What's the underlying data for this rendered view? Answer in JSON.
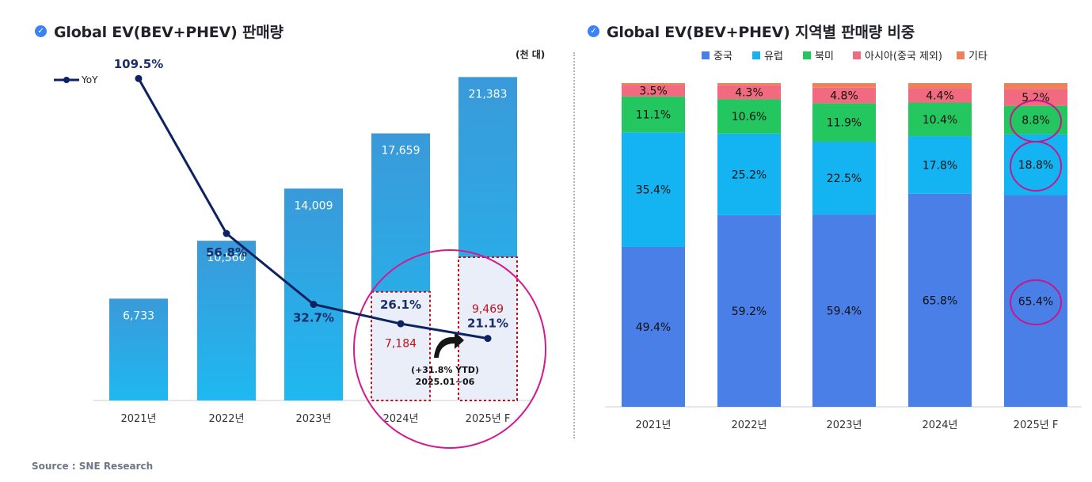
{
  "source": "Source : SNE Research",
  "charts": {
    "left": {
      "title": "Global EV(BEV+PHEV) 판매량",
      "unit": "(천 대)"
    },
    "right": {
      "title": "Global EV(BEV+PHEV) 지역별 판매량 비중"
    }
  },
  "colors": {
    "bar_top": "#3a9ad9",
    "bar_bottom": "#1fb8f0",
    "yoy_line": "#0d2260",
    "highlight": "#d4188f",
    "dashed_box": "#c0101a",
    "ytd_fill": "#e9eef9",
    "china": "#4a7fe8",
    "europe": "#14b4f2",
    "north_america": "#23c65f",
    "asia_ex_china": "#f26a7f",
    "others": "#f0805a"
  },
  "chart_data": [
    {
      "type": "bar",
      "title": "Global EV(BEV+PHEV) 판매량",
      "unit": "(천 대)",
      "categories": [
        "2021년",
        "2022년",
        "2023년",
        "2024년",
        "2025년 F"
      ],
      "values": [
        6733,
        10560,
        14009,
        17659,
        21383
      ],
      "value_labels": [
        "6,733",
        "10,560",
        "14,009",
        "17,659",
        "21,383"
      ],
      "ylim": [
        0,
        22500
      ],
      "line_series": {
        "name": "YoY",
        "values": [
          109.5,
          56.8,
          32.7,
          26.1,
          21.1
        ],
        "labels": [
          "109.5%",
          "56.8%",
          "32.7%",
          "26.1%",
          "21.1%"
        ],
        "ylim": [
          0,
          135
        ]
      },
      "ytd": {
        "categories": [
          "2024년",
          "2025년 F"
        ],
        "values": [
          7184,
          9469
        ],
        "labels": [
          "7,184",
          "9,469"
        ],
        "annotation_line1": "(+31.8% YTD)",
        "annotation_line2": "2025.01~06"
      },
      "legend": [
        "YoY"
      ],
      "legend_position": "top-left"
    },
    {
      "type": "stacked_bar_100",
      "title": "Global EV(BEV+PHEV) 지역별 판매량 비중",
      "categories": [
        "2021년",
        "2022년",
        "2023년",
        "2024년",
        "2025년 F"
      ],
      "series": [
        {
          "name": "중국",
          "values": [
            49.4,
            59.2,
            59.4,
            65.8,
            65.4
          ],
          "labels": [
            "49.4%",
            "59.2%",
            "59.4%",
            "65.8%",
            "65.4%"
          ]
        },
        {
          "name": "유럽",
          "values": [
            35.4,
            25.2,
            22.5,
            17.8,
            18.8
          ],
          "labels": [
            "35.4%",
            "25.2%",
            "22.5%",
            "17.8%",
            "18.8%"
          ]
        },
        {
          "name": "북미",
          "values": [
            11.1,
            10.6,
            11.9,
            10.4,
            8.8
          ],
          "labels": [
            "11.1%",
            "10.6%",
            "11.9%",
            "10.4%",
            "8.8%"
          ]
        },
        {
          "name": "아시아(중국 제외)",
          "values": [
            3.5,
            4.3,
            4.8,
            4.4,
            5.2
          ],
          "labels": [
            "3.5%",
            "4.3%",
            "4.8%",
            "4.4%",
            "5.2%"
          ]
        },
        {
          "name": "기타",
          "values": [
            0.6,
            0.7,
            1.4,
            1.6,
            1.8
          ],
          "labels": [
            "",
            "",
            "",
            "",
            ""
          ]
        }
      ],
      "ylim": [
        0,
        100
      ],
      "legend_position": "top",
      "highlighted": [
        "2025년 F 중국",
        "2025년 F 유럽",
        "2025년 F 북미"
      ]
    }
  ]
}
